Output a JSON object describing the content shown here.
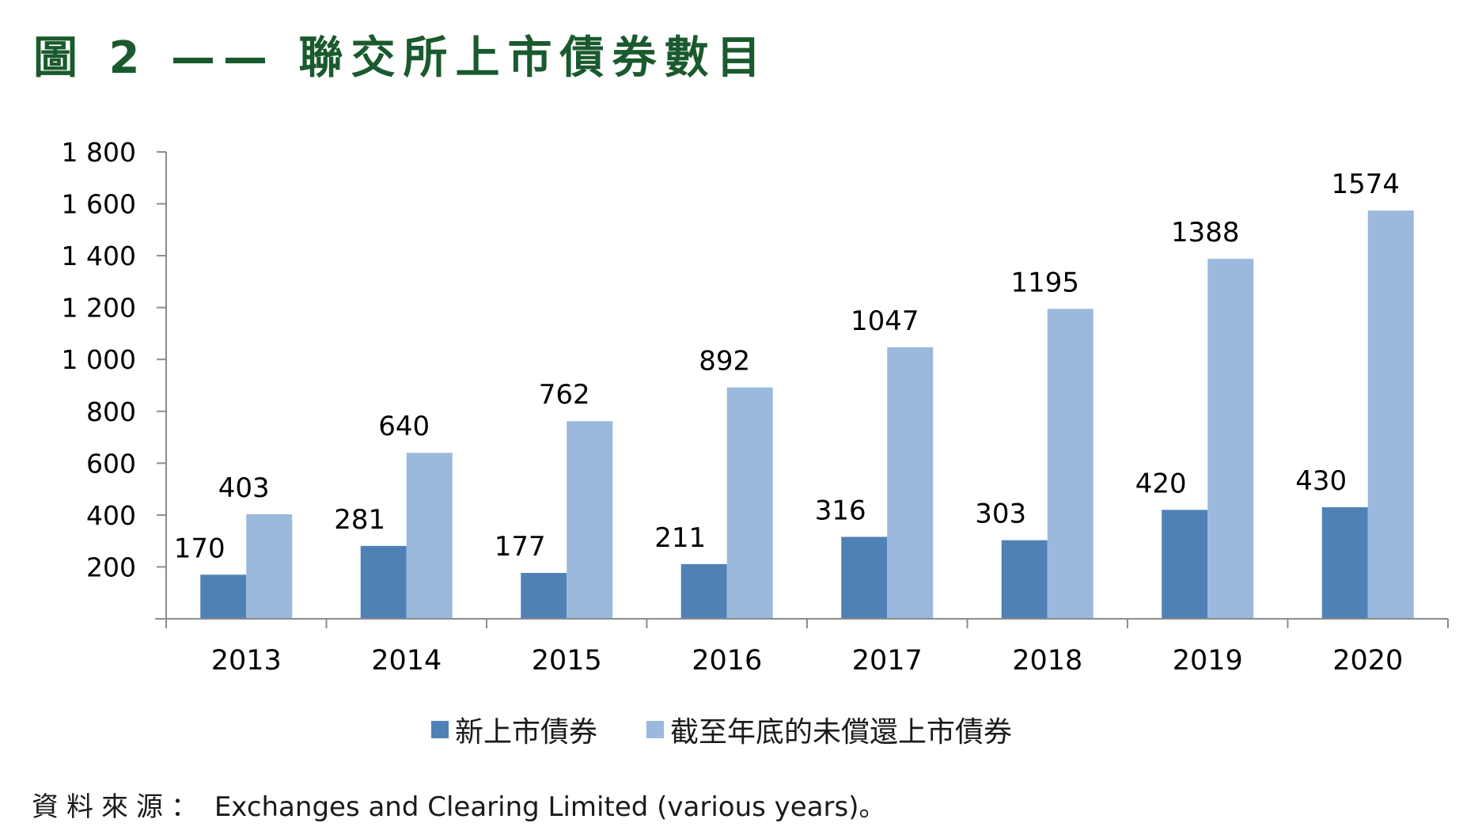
{
  "title": "圖 2 —— 聯交所上市債券數目",
  "source": {
    "label": "資料來源：",
    "text": "Exchanges and Clearing Limited (various years)。"
  },
  "chart_data": {
    "type": "bar",
    "categories": [
      "2013",
      "2014",
      "2015",
      "2016",
      "2017",
      "2018",
      "2019",
      "2020"
    ],
    "series": [
      {
        "name": "新上市債券",
        "color": "#4f81b5",
        "values": [
          170,
          281,
          177,
          211,
          316,
          303,
          420,
          430
        ]
      },
      {
        "name": "截至年底的未償還上市債券",
        "color": "#9bb9dc",
        "values": [
          403,
          640,
          762,
          892,
          1047,
          1195,
          1388,
          1574
        ]
      }
    ],
    "ylim": [
      0,
      1800
    ],
    "yticks": [
      200,
      400,
      600,
      800,
      1000,
      1200,
      1400,
      1600,
      1800
    ],
    "ytick_labels": [
      "200",
      "400",
      "600",
      "800",
      "1 000",
      "1 200",
      "1 400",
      "1 600",
      "1 800"
    ],
    "legend_position": "bottom",
    "grid": false
  }
}
